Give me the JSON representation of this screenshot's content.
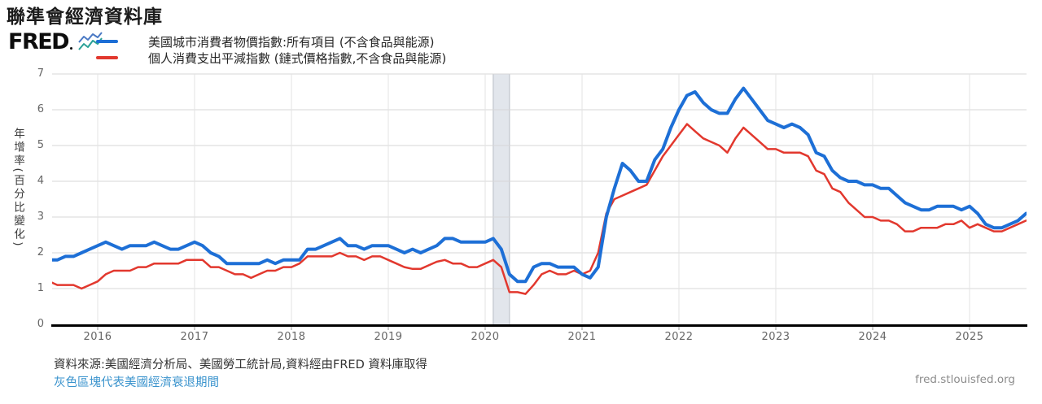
{
  "page": {
    "title": "聯準會經濟資料庫"
  },
  "logo": {
    "text": "FRED",
    "icon": "fred-sparkline-icon"
  },
  "legend": [
    {
      "id": "cpi",
      "label": "美國城市消費者物價指數:所有項目 (不含食品與能源)",
      "color": "#1d6fd6"
    },
    {
      "id": "pce",
      "label": "個人消費支出平減指數 (鏈式價格指數,不含食品與能源)",
      "color": "#e2382e"
    }
  ],
  "chart_data": {
    "type": "line",
    "title": "",
    "xlabel": "",
    "ylabel": "年增率(百分比變化)",
    "ylim": [
      0,
      7
    ],
    "y_ticks": [
      0,
      1,
      2,
      3,
      4,
      5,
      6,
      7
    ],
    "x_ticks": [
      2016,
      2017,
      2018,
      2019,
      2020,
      2021,
      2022,
      2023,
      2024,
      2025
    ],
    "grid": true,
    "legend_position": "top-left",
    "frequency": "monthly",
    "start_month": "2015-07",
    "recession_bands": [
      {
        "start": "2020-02",
        "end": "2020-04"
      }
    ],
    "band_fill": "#e2e6ec",
    "band_edge": "#c9cdd4",
    "series": [
      {
        "id": "cpi-line",
        "name": "美國城市消費者物價指數:所有項目 (不含食品與能源)",
        "color": "#1d6fd6",
        "width": 4,
        "values": [
          1.8,
          1.8,
          1.9,
          1.9,
          2.0,
          2.1,
          2.2,
          2.3,
          2.2,
          2.1,
          2.2,
          2.2,
          2.2,
          2.3,
          2.2,
          2.1,
          2.1,
          2.2,
          2.3,
          2.2,
          2.0,
          1.9,
          1.7,
          1.7,
          1.7,
          1.7,
          1.7,
          1.8,
          1.7,
          1.8,
          1.8,
          1.8,
          2.1,
          2.1,
          2.2,
          2.3,
          2.4,
          2.2,
          2.2,
          2.1,
          2.2,
          2.2,
          2.2,
          2.1,
          2.0,
          2.1,
          2.0,
          2.1,
          2.2,
          2.4,
          2.4,
          2.3,
          2.3,
          2.3,
          2.3,
          2.4,
          2.1,
          1.4,
          1.2,
          1.2,
          1.6,
          1.7,
          1.7,
          1.6,
          1.6,
          1.6,
          1.4,
          1.3,
          1.6,
          3.0,
          3.8,
          4.5,
          4.3,
          4.0,
          4.0,
          4.6,
          4.9,
          5.5,
          6.0,
          6.4,
          6.5,
          6.2,
          6.0,
          5.9,
          5.9,
          6.3,
          6.6,
          6.3,
          6.0,
          5.7,
          5.6,
          5.5,
          5.6,
          5.5,
          5.3,
          4.8,
          4.7,
          4.3,
          4.1,
          4.0,
          4.0,
          3.9,
          3.9,
          3.8,
          3.8,
          3.6,
          3.4,
          3.3,
          3.2,
          3.2,
          3.3,
          3.3,
          3.3,
          3.2,
          3.3,
          3.1,
          2.8,
          2.7,
          2.7,
          2.8,
          2.9,
          3.1
        ]
      },
      {
        "id": "pce-line",
        "name": "個人消費支出平減指數 (鏈式價格指數,不含食品與能源)",
        "color": "#e2382e",
        "width": 2.5,
        "values": [
          1.2,
          1.1,
          1.1,
          1.1,
          1.0,
          1.1,
          1.2,
          1.4,
          1.5,
          1.5,
          1.5,
          1.6,
          1.6,
          1.7,
          1.7,
          1.7,
          1.7,
          1.8,
          1.8,
          1.8,
          1.6,
          1.6,
          1.5,
          1.4,
          1.4,
          1.3,
          1.4,
          1.5,
          1.5,
          1.6,
          1.6,
          1.7,
          1.9,
          1.9,
          1.9,
          1.9,
          2.0,
          1.9,
          1.9,
          1.8,
          1.9,
          1.9,
          1.8,
          1.7,
          1.6,
          1.55,
          1.55,
          1.65,
          1.75,
          1.8,
          1.7,
          1.7,
          1.6,
          1.6,
          1.7,
          1.8,
          1.6,
          0.9,
          0.9,
          0.85,
          1.1,
          1.4,
          1.5,
          1.4,
          1.4,
          1.5,
          1.4,
          1.5,
          2.0,
          3.1,
          3.5,
          3.6,
          3.7,
          3.8,
          3.9,
          4.3,
          4.7,
          5.0,
          5.3,
          5.6,
          5.4,
          5.2,
          5.1,
          5.0,
          4.8,
          5.2,
          5.5,
          5.3,
          5.1,
          4.9,
          4.9,
          4.8,
          4.8,
          4.8,
          4.7,
          4.3,
          4.2,
          3.8,
          3.7,
          3.4,
          3.2,
          3.0,
          3.0,
          2.9,
          2.9,
          2.8,
          2.6,
          2.6,
          2.7,
          2.7,
          2.7,
          2.8,
          2.8,
          2.9,
          2.7,
          2.8,
          2.7,
          2.6,
          2.6,
          2.7,
          2.8,
          2.9
        ]
      }
    ]
  },
  "footer": {
    "source": "資料來源:美國經濟分析局、美國勞工統計局,資料經由FRED 資料庫取得",
    "note": "灰色區塊代表美國經濟衰退期間",
    "site": "fred.stlouisfed.org"
  }
}
